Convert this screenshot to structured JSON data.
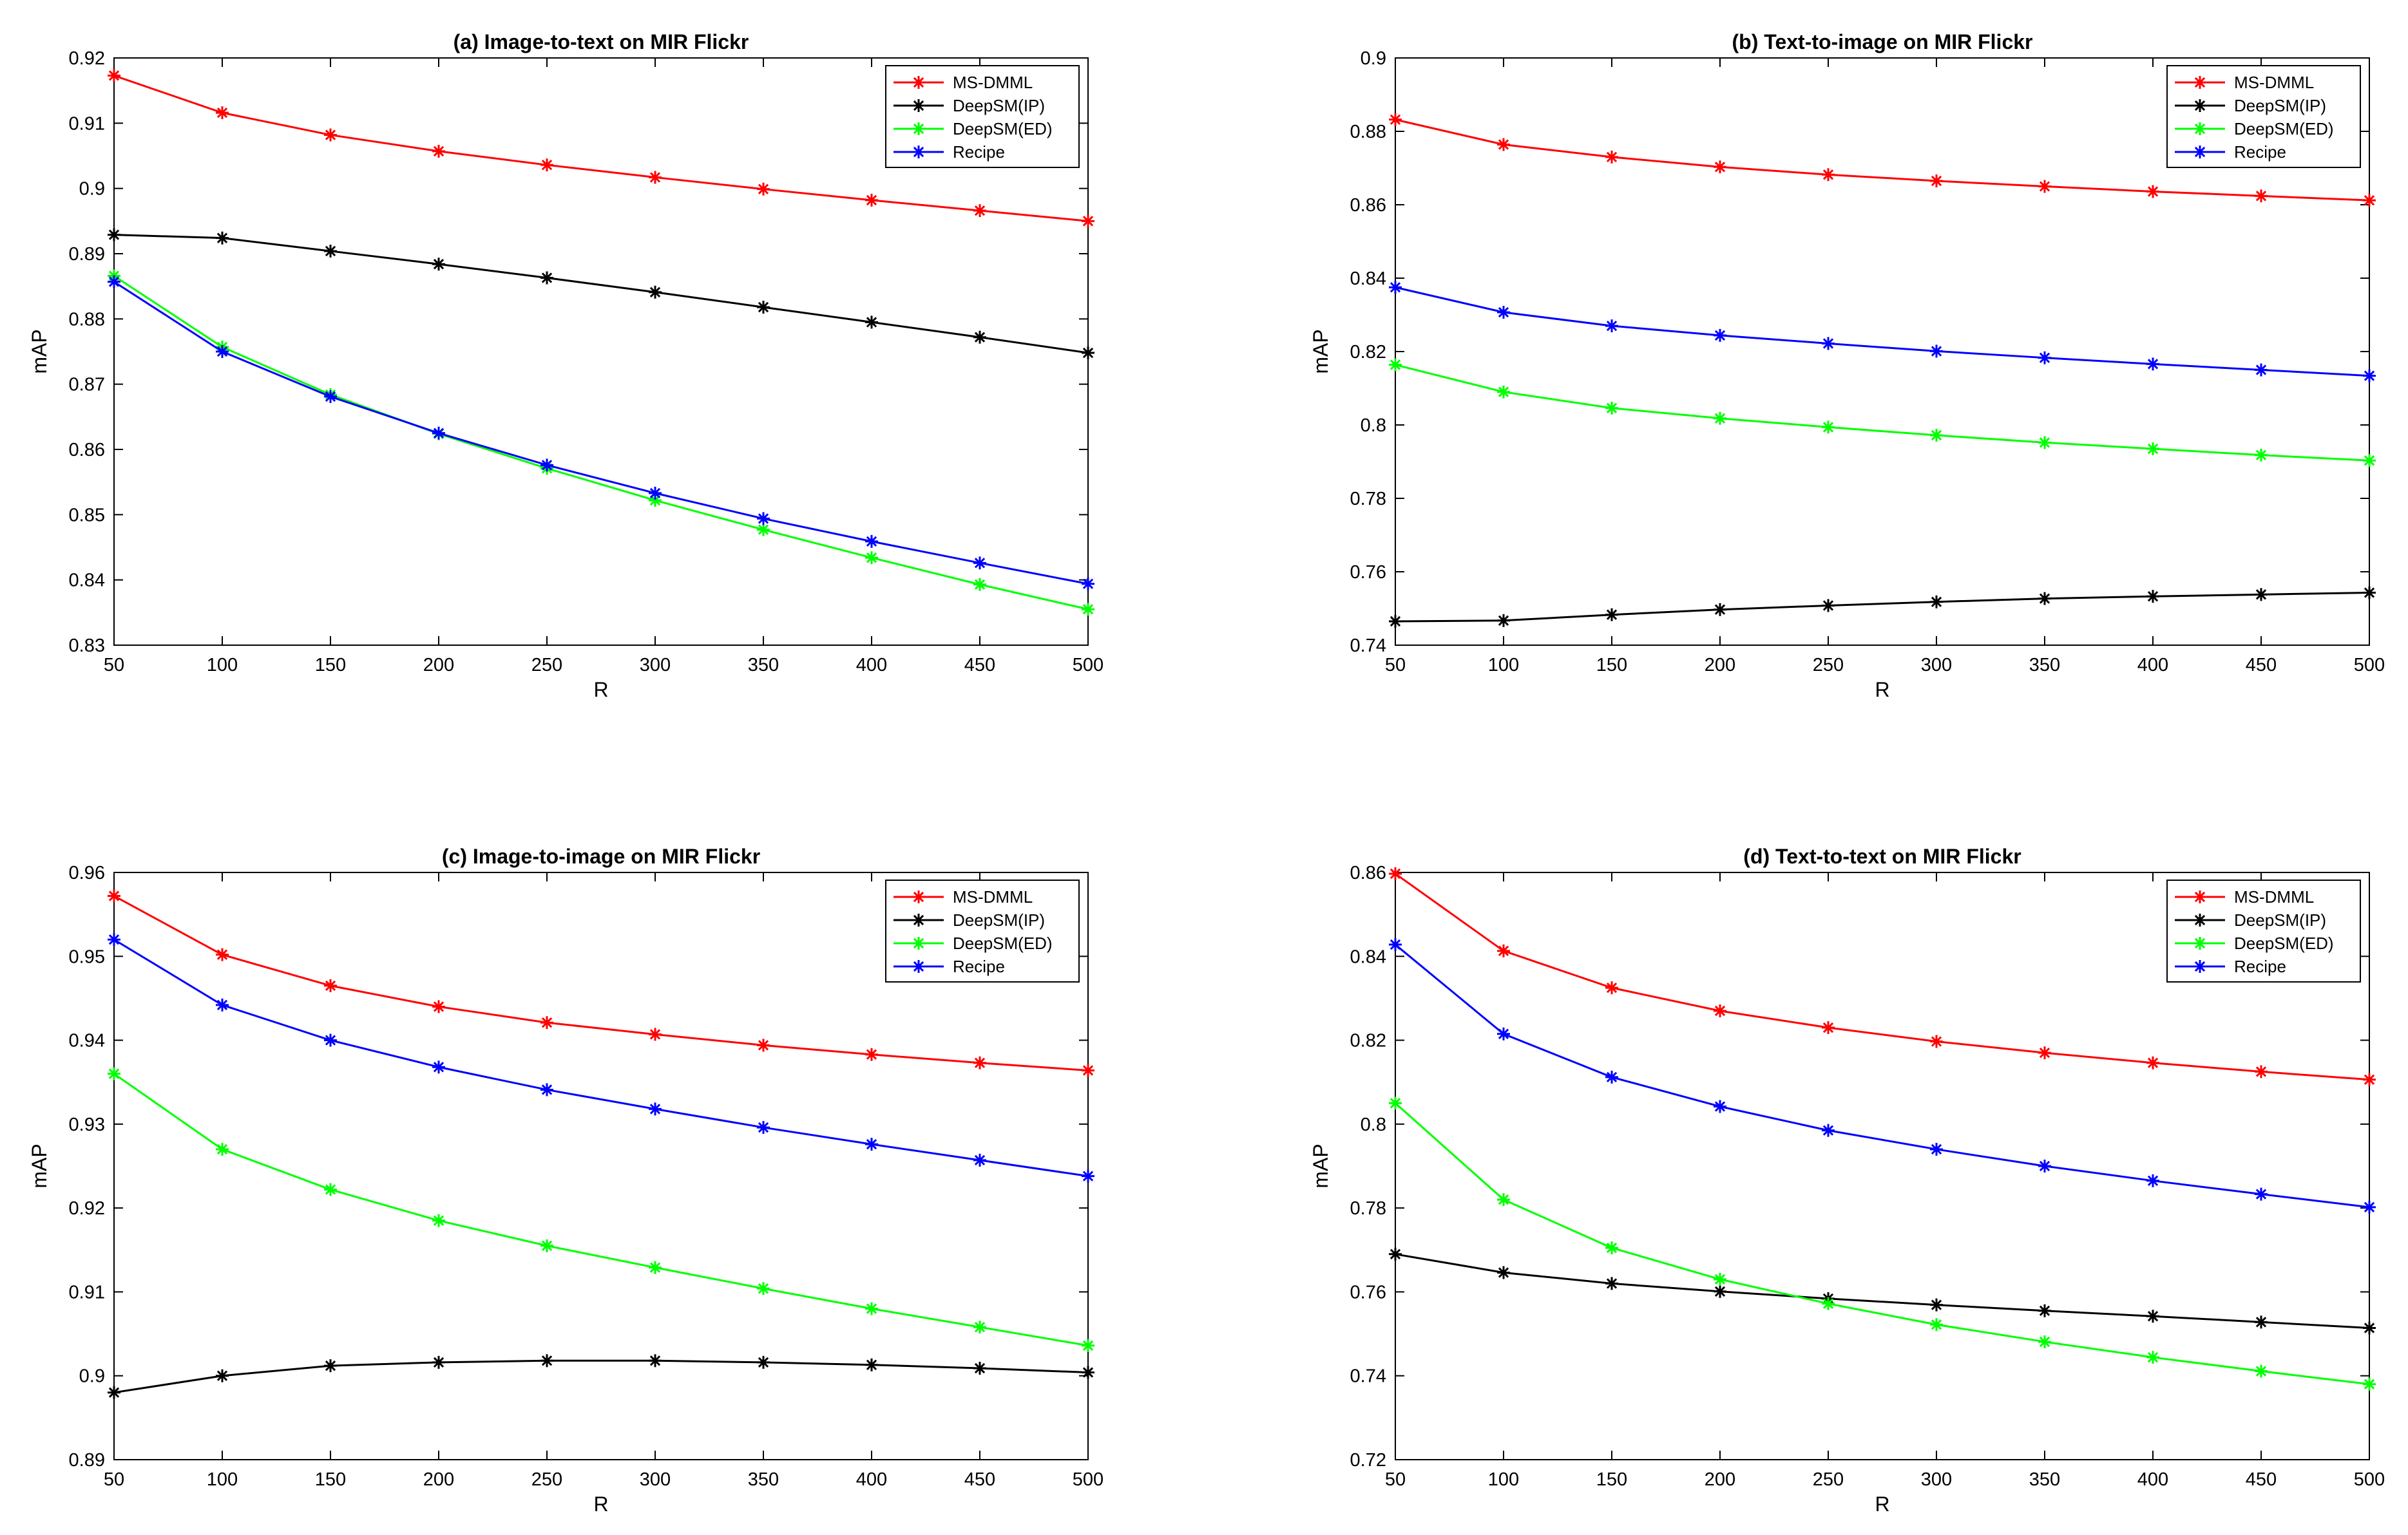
{
  "chart_data": [
    {
      "type": "line",
      "title": "(a) Image-to-text on MIR Flickr",
      "xlabel": "R",
      "ylabel": "mAP",
      "x": [
        50,
        100,
        150,
        200,
        250,
        300,
        350,
        400,
        450,
        500
      ],
      "xlim": [
        50,
        500
      ],
      "ylim": [
        0.83,
        0.92
      ],
      "xticks": [
        50,
        100,
        150,
        200,
        250,
        300,
        350,
        400,
        450,
        500
      ],
      "yticks": [
        0.83,
        0.84,
        0.85,
        0.86,
        0.87,
        0.88,
        0.89,
        0.9,
        0.91,
        0.92
      ],
      "ytick_labels": [
        "0.83",
        "0.84",
        "0.85",
        "0.86",
        "0.87",
        "0.88",
        "0.89",
        "0.9",
        "0.91",
        "0.92"
      ],
      "legend_position": "top-right",
      "series": [
        {
          "name": "MS-DMML",
          "color": "#ff0000",
          "values": [
            0.9173,
            0.9116,
            0.9082,
            0.9057,
            0.9036,
            0.9017,
            0.8999,
            0.8982,
            0.8966,
            0.895
          ]
        },
        {
          "name": "DeepSM(IP)",
          "color": "#000000",
          "values": [
            0.8929,
            0.8924,
            0.8904,
            0.8884,
            0.8863,
            0.8841,
            0.8818,
            0.8795,
            0.8772,
            0.8748
          ]
        },
        {
          "name": "DeepSM(ED)",
          "color": "#00ff00",
          "values": [
            0.8866,
            0.8757,
            0.8684,
            0.8624,
            0.8571,
            0.8522,
            0.8477,
            0.8434,
            0.8393,
            0.8355
          ]
        },
        {
          "name": "Recipe",
          "color": "#0000ff",
          "values": [
            0.8857,
            0.875,
            0.8681,
            0.8625,
            0.8576,
            0.8533,
            0.8494,
            0.8459,
            0.8426,
            0.8394
          ]
        }
      ]
    },
    {
      "type": "line",
      "title": "(b) Text-to-image on MIR Flickr",
      "xlabel": "R",
      "ylabel": "mAP",
      "x": [
        50,
        100,
        150,
        200,
        250,
        300,
        350,
        400,
        450,
        500
      ],
      "xlim": [
        50,
        500
      ],
      "ylim": [
        0.74,
        0.9
      ],
      "xticks": [
        50,
        100,
        150,
        200,
        250,
        300,
        350,
        400,
        450,
        500
      ],
      "yticks": [
        0.74,
        0.76,
        0.78,
        0.8,
        0.82,
        0.84,
        0.86,
        0.88,
        0.9
      ],
      "ytick_labels": [
        "0.74",
        "0.76",
        "0.78",
        "0.8",
        "0.82",
        "0.84",
        "0.86",
        "0.88",
        "0.9"
      ],
      "legend_position": "top-right",
      "series": [
        {
          "name": "MS-DMML",
          "color": "#ff0000",
          "values": [
            0.8832,
            0.8764,
            0.873,
            0.8703,
            0.8682,
            0.8665,
            0.865,
            0.8636,
            0.8624,
            0.8612
          ]
        },
        {
          "name": "DeepSM(IP)",
          "color": "#000000",
          "values": [
            0.7465,
            0.7467,
            0.7483,
            0.7497,
            0.7508,
            0.7518,
            0.7527,
            0.7533,
            0.7538,
            0.7543
          ]
        },
        {
          "name": "DeepSM(ED)",
          "color": "#00ff00",
          "values": [
            0.8164,
            0.809,
            0.8046,
            0.8018,
            0.7994,
            0.7972,
            0.7952,
            0.7935,
            0.7918,
            0.7903
          ]
        },
        {
          "name": "Recipe",
          "color": "#0000ff",
          "values": [
            0.8375,
            0.8307,
            0.827,
            0.8244,
            0.8222,
            0.8201,
            0.8183,
            0.8166,
            0.815,
            0.8134
          ]
        }
      ]
    },
    {
      "type": "line",
      "title": "(c) Image-to-image on MIR Flickr",
      "xlabel": "R",
      "ylabel": "mAP",
      "x": [
        50,
        100,
        150,
        200,
        250,
        300,
        350,
        400,
        450,
        500
      ],
      "xlim": [
        50,
        500
      ],
      "ylim": [
        0.89,
        0.96
      ],
      "xticks": [
        50,
        100,
        150,
        200,
        250,
        300,
        350,
        400,
        450,
        500
      ],
      "yticks": [
        0.89,
        0.9,
        0.91,
        0.92,
        0.93,
        0.94,
        0.95,
        0.96
      ],
      "ytick_labels": [
        "0.89",
        "0.9",
        "0.91",
        "0.92",
        "0.93",
        "0.94",
        "0.95",
        "0.96"
      ],
      "legend_position": "top-right",
      "series": [
        {
          "name": "MS-DMML",
          "color": "#ff0000",
          "values": [
            0.9572,
            0.9502,
            0.9465,
            0.944,
            0.9421,
            0.9407,
            0.9394,
            0.9383,
            0.9373,
            0.9364
          ]
        },
        {
          "name": "DeepSM(IP)",
          "color": "#000000",
          "values": [
            0.898,
            0.9,
            0.9012,
            0.9016,
            0.9018,
            0.9018,
            0.9016,
            0.9013,
            0.9009,
            0.9004
          ]
        },
        {
          "name": "DeepSM(ED)",
          "color": "#00ff00",
          "values": [
            0.936,
            0.927,
            0.9222,
            0.9185,
            0.9155,
            0.9129,
            0.9104,
            0.908,
            0.9058,
            0.9036
          ]
        },
        {
          "name": "Recipe",
          "color": "#0000ff",
          "values": [
            0.952,
            0.9442,
            0.94,
            0.9368,
            0.9341,
            0.9318,
            0.9296,
            0.9276,
            0.9257,
            0.9238
          ]
        }
      ]
    },
    {
      "type": "line",
      "title": "(d) Text-to-text on MIR Flickr",
      "xlabel": "R",
      "ylabel": "mAP",
      "x": [
        50,
        100,
        150,
        200,
        250,
        300,
        350,
        400,
        450,
        500
      ],
      "xlim": [
        50,
        500
      ],
      "ylim": [
        0.72,
        0.86
      ],
      "xticks": [
        50,
        100,
        150,
        200,
        250,
        300,
        350,
        400,
        450,
        500
      ],
      "yticks": [
        0.72,
        0.74,
        0.76,
        0.78,
        0.8,
        0.82,
        0.84,
        0.86
      ],
      "ytick_labels": [
        "0.72",
        "0.74",
        "0.76",
        "0.78",
        "0.8",
        "0.82",
        "0.84",
        "0.86"
      ],
      "legend_position": "top-right",
      "series": [
        {
          "name": "MS-DMML",
          "color": "#ff0000",
          "values": [
            0.8597,
            0.8413,
            0.8325,
            0.827,
            0.823,
            0.8197,
            0.817,
            0.8146,
            0.8125,
            0.8106
          ]
        },
        {
          "name": "DeepSM(IP)",
          "color": "#000000",
          "values": [
            0.769,
            0.7646,
            0.762,
            0.7601,
            0.7584,
            0.7569,
            0.7555,
            0.7542,
            0.7528,
            0.7514
          ]
        },
        {
          "name": "DeepSM(ED)",
          "color": "#00ff00",
          "values": [
            0.805,
            0.782,
            0.7705,
            0.763,
            0.7572,
            0.7522,
            0.7481,
            0.7444,
            0.7411,
            0.738
          ]
        },
        {
          "name": "Recipe",
          "color": "#0000ff",
          "values": [
            0.8428,
            0.8215,
            0.8112,
            0.8042,
            0.7985,
            0.794,
            0.79,
            0.7865,
            0.7833,
            0.7802
          ]
        }
      ]
    }
  ]
}
